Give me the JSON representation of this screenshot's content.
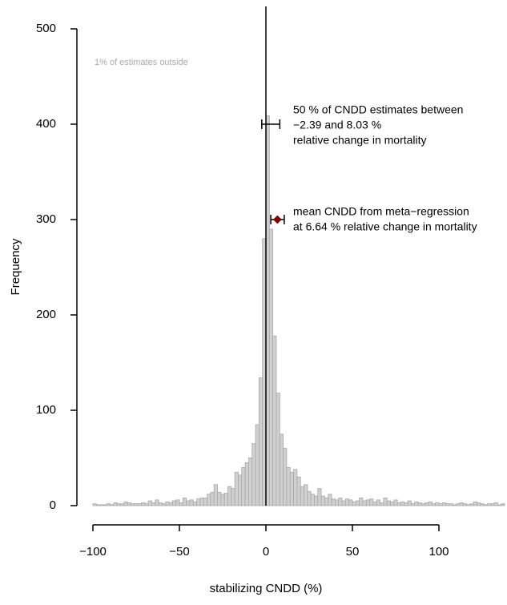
{
  "chart_data": {
    "type": "histogram",
    "xlabel": "stabilizing CNDD (%)",
    "ylabel": "Frequency",
    "note": "1% of estimates outside",
    "bins": [
      -100,
      -98,
      -96,
      -94,
      -92,
      -90,
      -88,
      -86,
      -84,
      -82,
      -80,
      -78,
      -76,
      -74,
      -72,
      -70,
      -68,
      -66,
      -64,
      -62,
      -60,
      -58,
      -56,
      -54,
      -52,
      -50,
      -48,
      -46,
      -44,
      -42,
      -40,
      -38,
      -36,
      -34,
      -32,
      -30,
      -28,
      -26,
      -24,
      -22,
      -20,
      -18,
      -16,
      -14,
      -12,
      -10,
      -8,
      -6,
      -4,
      -2,
      0,
      2,
      4,
      6,
      8,
      10,
      12,
      14,
      16,
      18,
      20,
      22,
      24,
      26,
      28,
      30,
      32,
      34,
      36,
      38,
      40,
      42,
      44,
      46,
      48,
      50,
      52,
      54,
      56,
      58,
      60,
      62,
      64,
      66,
      68,
      70,
      72,
      74,
      76,
      78,
      80,
      82,
      84,
      86,
      88,
      90,
      92,
      94,
      96,
      98,
      100,
      102,
      104,
      106,
      108,
      110,
      112,
      114,
      116,
      118,
      120,
      122,
      124,
      126,
      128,
      130,
      132,
      134,
      136,
      138,
      140
    ],
    "values": [
      2,
      1,
      1,
      1,
      2,
      1,
      3,
      2,
      2,
      4,
      3,
      2,
      2,
      2,
      3,
      2,
      5,
      3,
      6,
      3,
      2,
      4,
      3,
      5,
      6,
      3,
      8,
      5,
      6,
      4,
      7,
      8,
      8,
      12,
      14,
      22,
      14,
      12,
      13,
      20,
      18,
      35,
      32,
      40,
      45,
      50,
      65,
      85,
      134,
      280,
      409,
      290,
      178,
      118,
      75,
      60,
      40,
      35,
      38,
      30,
      20,
      22,
      15,
      12,
      10,
      18,
      10,
      8,
      12,
      7,
      6,
      8,
      5,
      7,
      6,
      4,
      5,
      8,
      5,
      6,
      7,
      4,
      6,
      3,
      8,
      5,
      4,
      6,
      3,
      4,
      3,
      5,
      2,
      4,
      3,
      2,
      3,
      4,
      2,
      3,
      2,
      3,
      2,
      2,
      1,
      2,
      3,
      2,
      1,
      2,
      4,
      3,
      2,
      1,
      2,
      2,
      3,
      1,
      2,
      1
    ],
    "color": "#d0d0d0",
    "xlim": [
      -100,
      140
    ],
    "ylim": [
      0,
      500
    ],
    "xticks": [
      {
        "value": -100,
        "label": "−100"
      },
      {
        "value": -50,
        "label": "−50"
      },
      0,
      50,
      100
    ],
    "yticks": [
      0,
      100,
      200,
      300,
      400,
      500
    ],
    "vline": 0,
    "interval": {
      "low": -2.39,
      "high": 8.03,
      "y": 400,
      "text": [
        "50 % of CNDD estimates between",
        "−2.39 and 8.03 %",
        "relative change in mortality"
      ]
    },
    "mean": {
      "value": 6.64,
      "low": 2.8,
      "high": 10.6,
      "y": 300,
      "color": "#8b0000",
      "text": [
        "mean CNDD from meta−regression",
        "at 6.64 % relative change in mortality"
      ]
    }
  }
}
